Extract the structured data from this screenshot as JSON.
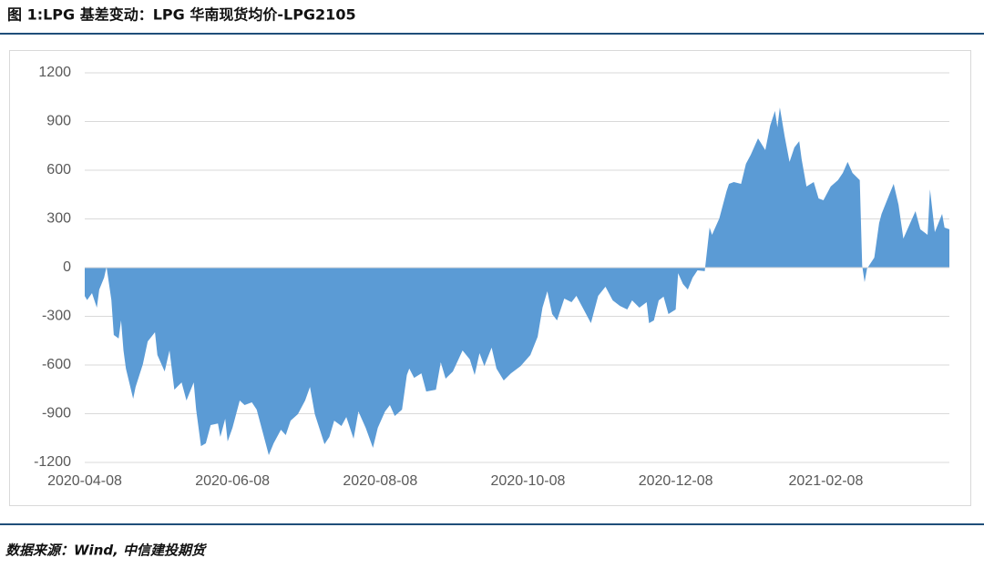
{
  "chart_data": {
    "type": "area",
    "title": "图 1:LPG 基差变动：LPG 华南现货均价-LPG2105",
    "source": "数据来源：Wind, 中信建投期货",
    "color": "#5b9bd5",
    "grid": true,
    "xlim": [
      "2020-04-08",
      "2021-03-31"
    ],
    "xticks": [
      "2020-04-08",
      "2020-06-08",
      "2020-08-08",
      "2020-10-08",
      "2020-12-08",
      "2021-02-08"
    ],
    "ylim": [
      -1200,
      1200
    ],
    "yticks": [
      -1200,
      -900,
      -600,
      -300,
      0,
      300,
      600,
      900,
      1200
    ],
    "x": [
      "2020-04-08",
      "2020-04-09",
      "2020-04-11",
      "2020-04-13",
      "2020-04-14",
      "2020-04-16",
      "2020-04-17",
      "2020-04-19",
      "2020-04-20",
      "2020-04-22",
      "2020-04-23",
      "2020-04-24",
      "2020-04-25",
      "2020-04-28",
      "2020-04-29",
      "2020-05-02",
      "2020-05-04",
      "2020-05-07",
      "2020-05-08",
      "2020-05-11",
      "2020-05-13",
      "2020-05-15",
      "2020-05-18",
      "2020-05-20",
      "2020-05-23",
      "2020-05-24",
      "2020-05-26",
      "2020-05-28",
      "2020-05-30",
      "2020-06-02",
      "2020-06-03",
      "2020-06-05",
      "2020-06-06",
      "2020-06-08",
      "2020-06-11",
      "2020-06-13",
      "2020-06-16",
      "2020-06-18",
      "2020-06-20",
      "2020-06-23",
      "2020-06-25",
      "2020-06-28",
      "2020-06-30",
      "2020-07-02",
      "2020-07-05",
      "2020-07-08",
      "2020-07-10",
      "2020-07-12",
      "2020-07-16",
      "2020-07-18",
      "2020-07-20",
      "2020-07-23",
      "2020-07-25",
      "2020-07-28",
      "2020-07-30",
      "2020-08-02",
      "2020-08-05",
      "2020-08-07",
      "2020-08-10",
      "2020-08-12",
      "2020-08-14",
      "2020-08-17",
      "2020-08-19",
      "2020-08-20",
      "2020-08-22",
      "2020-08-25",
      "2020-08-27",
      "2020-08-31",
      "2020-09-02",
      "2020-09-04",
      "2020-09-07",
      "2020-09-11",
      "2020-09-14",
      "2020-09-16",
      "2020-09-18",
      "2020-09-20",
      "2020-09-23",
      "2020-09-25",
      "2020-09-28",
      "2020-10-01",
      "2020-10-05",
      "2020-10-09",
      "2020-10-12",
      "2020-10-14",
      "2020-10-16",
      "2020-10-18",
      "2020-10-20",
      "2020-10-23",
      "2020-10-26",
      "2020-10-28",
      "2020-10-31",
      "2020-11-03",
      "2020-11-06",
      "2020-11-09",
      "2020-11-12",
      "2020-11-15",
      "2020-11-18",
      "2020-11-20",
      "2020-11-23",
      "2020-11-26",
      "2020-11-27",
      "2020-11-29",
      "2020-12-01",
      "2020-12-03",
      "2020-12-05",
      "2020-12-08",
      "2020-12-09",
      "2020-12-11",
      "2020-12-13",
      "2020-12-15",
      "2020-12-17",
      "2020-12-20",
      "2020-12-22",
      "2020-12-23",
      "2020-12-26",
      "2020-12-29",
      "2020-12-30",
      "2021-01-01",
      "2021-01-04",
      "2021-01-06",
      "2021-01-08",
      "2021-01-11",
      "2021-01-14",
      "2021-01-16",
      "2021-01-18",
      "2021-01-19",
      "2021-01-20",
      "2021-01-22",
      "2021-01-24",
      "2021-01-26",
      "2021-01-28",
      "2021-01-29",
      "2021-01-31",
      "2021-02-03",
      "2021-02-05",
      "2021-02-07",
      "2021-02-10",
      "2021-02-13",
      "2021-02-15",
      "2021-02-17",
      "2021-02-19",
      "2021-02-22",
      "2021-02-23",
      "2021-02-24",
      "2021-02-25",
      "2021-02-28",
      "2021-03-02",
      "2021-03-03",
      "2021-03-06",
      "2021-03-08",
      "2021-03-10",
      "2021-03-12",
      "2021-03-14",
      "2021-03-17",
      "2021-03-19",
      "2021-03-22",
      "2021-03-23",
      "2021-03-25",
      "2021-03-28",
      "2021-03-29",
      "2021-03-31"
    ],
    "values": [
      -175,
      -200,
      -157,
      -247,
      -135,
      -62,
      5,
      -200,
      -415,
      -437,
      -325,
      -510,
      -622,
      -808,
      -735,
      -595,
      -455,
      -398,
      -538,
      -640,
      -510,
      -752,
      -707,
      -819,
      -707,
      -875,
      -1100,
      -1082,
      -970,
      -960,
      -1043,
      -931,
      -1071,
      -987,
      -819,
      -847,
      -830,
      -875,
      -987,
      -1155,
      -1082,
      -999,
      -1032,
      -943,
      -903,
      -819,
      -735,
      -903,
      -1088,
      -1043,
      -943,
      -976,
      -920,
      -1054,
      -886,
      -987,
      -1110,
      -987,
      -886,
      -847,
      -914,
      -875,
      -662,
      -622,
      -679,
      -651,
      -763,
      -752,
      -583,
      -684,
      -640,
      -510,
      -566,
      -662,
      -527,
      -606,
      -493,
      -622,
      -695,
      -651,
      -606,
      -538,
      -426,
      -247,
      -146,
      -286,
      -325,
      -191,
      -213,
      -174,
      -258,
      -342,
      -174,
      -118,
      -202,
      -236,
      -258,
      -202,
      -247,
      -213,
      -342,
      -325,
      -202,
      -179,
      -286,
      -258,
      -34,
      -101,
      -135,
      -62,
      -17,
      -22,
      247,
      202,
      303,
      471,
      516,
      527,
      516,
      639,
      695,
      796,
      724,
      875,
      965,
      864,
      987,
      808,
      651,
      740,
      779,
      668,
      500,
      527,
      426,
      415,
      500,
      539,
      583,
      651,
      583,
      539,
      11,
      -90,
      -6,
      62,
      275,
      331,
      443,
      516,
      387,
      179,
      247,
      348,
      236,
      202,
      482,
      219,
      331,
      247,
      236
    ]
  }
}
